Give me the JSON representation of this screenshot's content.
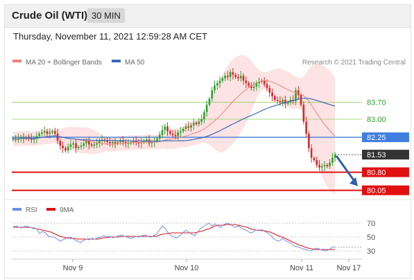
{
  "header": {
    "title": "Crude Oil (WTI)",
    "timeframe": "30 MIN"
  },
  "subtitle": "Thursday, November 11, 2021 12:59:28 AM CET",
  "legend": {
    "ma20_bollinger": "MA 20 + Bollinger Bands",
    "ma50": "MA 50"
  },
  "credit": "Research © 2021 Trading Central",
  "rsi_legend": {
    "rsi": "RSI",
    "ma9": "9MA"
  },
  "colors": {
    "bull": "#2ea02e",
    "bear": "#d62828",
    "bollinger": "#fde3e3",
    "ma20": "#f08080",
    "ma50": "#3a6ab8",
    "resistance": "#8ccf5a",
    "pivot": "#3f7fdf",
    "support": "#e01010",
    "last": "#333333",
    "rsi": "#6f8ee6"
  },
  "chart_data": [
    {
      "type": "candlestick",
      "x_ticks": [
        "Nov 9",
        "Nov 10",
        "Nov 11",
        "Nov 17"
      ],
      "ylim": [
        79.75,
        85.1
      ],
      "levels": [
        {
          "label": "83.70",
          "value": 83.7,
          "kind": "resistance"
        },
        {
          "label": "83.00",
          "value": 83.0,
          "kind": "resistance"
        },
        {
          "label": "82.25",
          "value": 82.25,
          "kind": "pivot"
        },
        {
          "label": "81.53",
          "value": 81.53,
          "kind": "last"
        },
        {
          "label": "80.80",
          "value": 80.8,
          "kind": "support"
        },
        {
          "label": "80.05",
          "value": 80.05,
          "kind": "support"
        }
      ],
      "close": [
        82.2,
        82.15,
        82.2,
        82.25,
        82.2,
        82.25,
        82.2,
        82.15,
        82.2,
        82.3,
        82.4,
        82.45,
        82.5,
        82.4,
        82.45,
        82.5,
        82.4,
        82.1,
        81.9,
        81.8,
        81.7,
        81.85,
        81.95,
        82.0,
        81.8,
        81.85,
        81.9,
        82.0,
        82.1,
        81.95,
        81.9,
        81.95,
        82.0,
        82.1,
        82.15,
        82.1,
        82.05,
        82.0,
        82.05,
        82.0,
        82.05,
        82.1,
        82.05,
        82.0,
        82.0,
        82.05,
        82.1,
        82.05,
        82.0,
        82.05,
        82.1,
        82.15,
        82.0,
        82.05,
        82.1,
        82.2,
        82.35,
        82.55,
        82.7,
        82.5,
        82.4,
        82.35,
        82.3,
        82.45,
        82.5,
        82.6,
        82.7,
        82.65,
        82.75,
        82.85,
        82.8,
        82.9,
        83.0,
        83.3,
        83.6,
        83.85,
        84.2,
        84.4,
        84.5,
        84.6,
        84.7,
        84.8,
        84.75,
        84.95,
        84.85,
        84.75,
        84.7,
        84.8,
        84.6,
        84.5,
        84.4,
        84.3,
        84.35,
        84.5,
        84.55,
        84.6,
        84.45,
        84.3,
        84.1,
        83.95,
        83.8,
        83.75,
        83.7,
        83.8,
        83.65,
        83.7,
        83.8,
        83.75,
        84.2,
        84.0,
        83.6,
        82.9,
        82.4,
        81.8,
        81.4,
        81.3,
        81.1,
        81.0,
        81.05,
        81.1,
        81.05,
        81.2,
        81.4,
        81.53
      ]
    },
    {
      "type": "line",
      "name": "RSI",
      "yticks": [
        70,
        50,
        30
      ],
      "ylim": [
        20,
        80
      ],
      "rsi": [
        65,
        66,
        64,
        63,
        66,
        65,
        64,
        62,
        62,
        55,
        58,
        56,
        51,
        50,
        50,
        47,
        44,
        46,
        48,
        50,
        49,
        46,
        44,
        42,
        45,
        47,
        46,
        48,
        47,
        49,
        50,
        52,
        50,
        51,
        49,
        50,
        52,
        53,
        51,
        50,
        48,
        49,
        51,
        50,
        52,
        53,
        51,
        50,
        52,
        54,
        60,
        66,
        62,
        56,
        52,
        50,
        49,
        52,
        56,
        60,
        57,
        54,
        52,
        57,
        62,
        65,
        68,
        70,
        66,
        69,
        66,
        64,
        68,
        70,
        69,
        66,
        64,
        66,
        63,
        61,
        59,
        56,
        57,
        60,
        59,
        61,
        58,
        56,
        53,
        48,
        45,
        44,
        48,
        45,
        43,
        41,
        37,
        36,
        35,
        33,
        32,
        31,
        30,
        33,
        34,
        32,
        31,
        30,
        32,
        35,
        36
      ],
      "ma9": [
        64,
        64,
        64,
        64,
        64,
        64,
        64,
        63,
        62,
        61,
        60,
        59,
        58,
        57,
        55,
        53,
        51,
        50,
        49,
        48,
        48,
        48,
        47,
        47,
        47,
        47,
        47,
        47,
        47,
        47,
        48,
        49,
        49,
        50,
        50,
        50,
        50,
        51,
        51,
        51,
        51,
        51,
        51,
        51,
        51,
        51,
        51,
        51,
        51,
        51,
        53,
        54,
        55,
        55,
        56,
        56,
        56,
        56,
        56,
        56,
        56,
        56,
        56,
        57,
        58,
        59,
        61,
        62,
        64,
        66,
        67,
        67,
        67,
        68,
        68,
        68,
        68,
        67,
        66,
        65,
        64,
        62,
        61,
        60,
        60,
        59,
        59,
        58,
        57,
        55,
        53,
        51,
        50,
        48,
        46,
        44,
        42,
        40,
        38,
        37,
        35,
        34,
        33,
        32,
        32,
        32,
        32,
        32,
        32,
        32,
        32
      ]
    }
  ]
}
